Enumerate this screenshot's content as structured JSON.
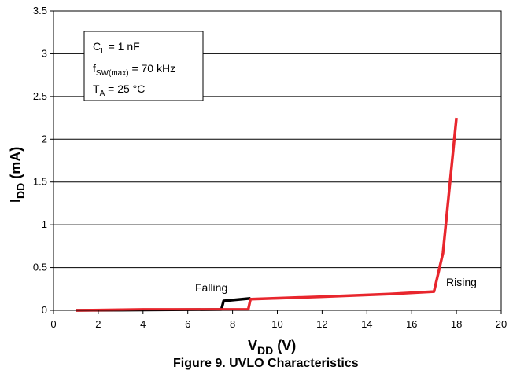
{
  "chart_data": {
    "type": "line",
    "xlabel_main": "V",
    "xlabel_sub": "DD",
    "xlabel_unit": " (V)",
    "ylabel_main": "I",
    "ylabel_sub": "DD",
    "ylabel_unit": " (mA)",
    "xlim": [
      0,
      20
    ],
    "ylim": [
      0,
      3.5
    ],
    "xticks": [
      "0",
      "2",
      "4",
      "6",
      "8",
      "10",
      "12",
      "14",
      "16",
      "18",
      "20"
    ],
    "yticks": [
      "0",
      "0.5",
      "1",
      "1.5",
      "2",
      "2.5",
      "3",
      "3.5"
    ],
    "grid": "horizontal",
    "series": [
      {
        "name": "Falling",
        "color": "#000000",
        "x": [
          1,
          7.5,
          7.6,
          8.8
        ],
        "y": [
          0,
          0.01,
          0.11,
          0.14
        ]
      },
      {
        "name": "Rising",
        "color": "#e8262d",
        "x": [
          1,
          4,
          7,
          8.7,
          8.8,
          12,
          15,
          17,
          17.4,
          18
        ],
        "y": [
          0,
          0.01,
          0.01,
          0.01,
          0.13,
          0.16,
          0.19,
          0.22,
          0.67,
          2.25
        ]
      }
    ],
    "legend_box": {
      "line1_main": "C",
      "line1_sub": "L",
      "line1_rest": " = 1 nF",
      "line2_main": "f",
      "line2_sub": "SW(max)",
      "line2_rest": " = 70 kHz",
      "line3_main": "T",
      "line3_sub": "A",
      "line3_rest": " = 25 °C"
    }
  },
  "caption": "Figure 9. UVLO Characteristics"
}
